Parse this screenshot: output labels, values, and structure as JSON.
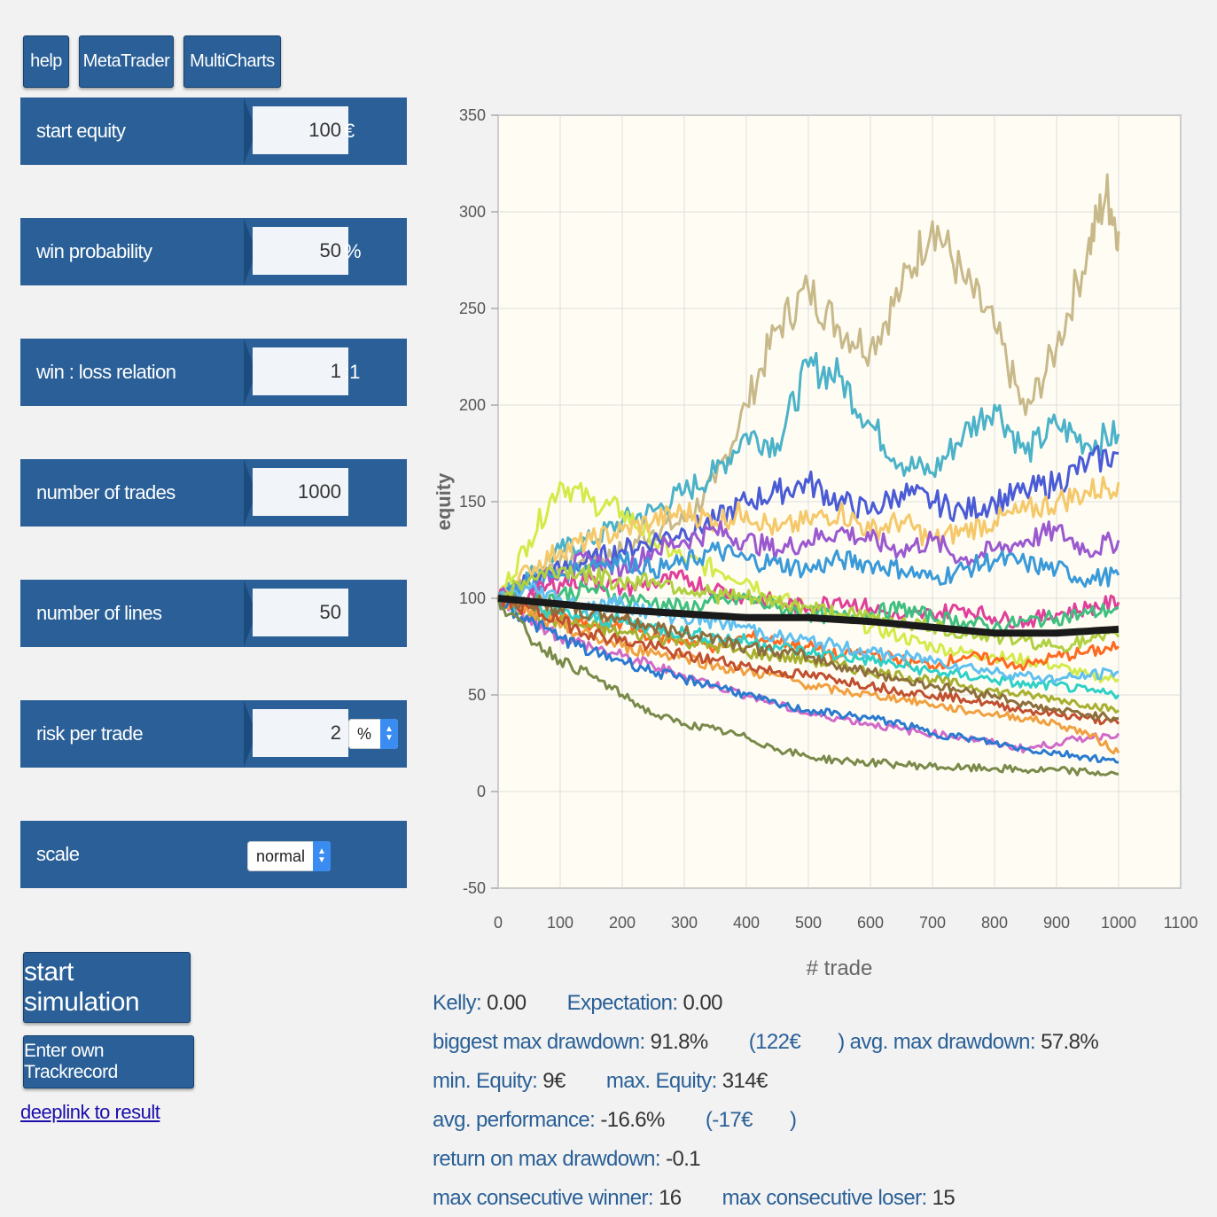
{
  "toolbar": {
    "help": "help",
    "metatrader": "MetaTrader",
    "multicharts": "MultiCharts"
  },
  "params": {
    "start_equity": {
      "label": "start equity",
      "value": "100",
      "unit": "€"
    },
    "win_probability": {
      "label": "win probability",
      "value": "50",
      "unit": "%"
    },
    "win_loss": {
      "label": "win : loss relation",
      "value": "1",
      "unit": ":1"
    },
    "num_trades": {
      "label": "number of trades",
      "value": "1000"
    },
    "num_lines": {
      "label": "number of lines",
      "value": "50"
    },
    "risk": {
      "label": "risk per trade",
      "value": "2",
      "unit_select": "%"
    },
    "scale": {
      "label": "scale",
      "value": "normal"
    }
  },
  "actions": {
    "start": "start simulation",
    "trackrecord": "Enter own Trackrecord",
    "deeplink": "deeplink to result"
  },
  "colors": {
    "accent": "#2a6097",
    "plot_bg": "#fffdf3",
    "average_line": "#1a1a1a"
  },
  "stats": {
    "kelly_label": "Kelly:",
    "kelly": "0.00",
    "expectation_label": "Expectation:",
    "expectation": "0.00",
    "biggest_dd_label": "biggest max drawdown:",
    "biggest_dd": "91.8%",
    "biggest_dd_abs": "(122€",
    "avg_dd_label": ") avg. max drawdown:",
    "avg_dd": "57.8%",
    "min_eq_label": "min. Equity:",
    "min_eq": "9€",
    "max_eq_label": "max. Equity:",
    "max_eq": "314€",
    "avg_perf_label": "avg. performance:",
    "avg_perf": "-16.6%",
    "avg_perf_abs": "(-17€",
    "avg_perf_close": ")",
    "rodd_label": "return on max drawdown:",
    "rodd": "-0.1",
    "max_win_label": "max consecutive winner:",
    "max_win": "16",
    "max_loss_label": "max consecutive loser:",
    "max_loss": "15"
  },
  "chart_data": {
    "type": "line",
    "xlabel": "# trade",
    "ylabel": "equity",
    "xlim": [
      0,
      1100
    ],
    "ylim": [
      -50,
      350
    ],
    "x_ticks": [
      0,
      100,
      200,
      300,
      400,
      500,
      600,
      700,
      800,
      900,
      1000,
      1100
    ],
    "y_ticks": [
      -50,
      0,
      50,
      100,
      150,
      200,
      250,
      300,
      350
    ],
    "grid": true,
    "series": [
      {
        "color": "#c8b98a",
        "x": [
          0,
          50,
          100,
          150,
          200,
          250,
          300,
          350,
          400,
          450,
          500,
          550,
          600,
          650,
          700,
          750,
          800,
          850,
          900,
          950,
          980,
          1000
        ],
        "y": [
          100,
          110,
          120,
          118,
          125,
          135,
          140,
          160,
          200,
          240,
          260,
          240,
          230,
          260,
          295,
          265,
          240,
          195,
          230,
          280,
          310,
          290
        ]
      },
      {
        "color": "#4bb2c9",
        "x": [
          0,
          50,
          100,
          150,
          200,
          250,
          300,
          350,
          400,
          450,
          500,
          550,
          600,
          650,
          700,
          750,
          800,
          850,
          900,
          950,
          1000
        ],
        "y": [
          100,
          112,
          125,
          130,
          140,
          145,
          155,
          165,
          185,
          180,
          220,
          215,
          190,
          170,
          165,
          185,
          200,
          175,
          190,
          180,
          185
        ]
      },
      {
        "color": "#d4ea4a",
        "x": [
          0,
          50,
          100,
          150,
          200,
          250,
          300,
          350,
          400,
          450,
          500,
          550,
          600,
          650,
          700,
          750,
          800,
          850,
          900,
          950,
          1000
        ],
        "y": [
          100,
          130,
          160,
          150,
          145,
          130,
          120,
          115,
          110,
          100,
          95,
          90,
          85,
          80,
          75,
          72,
          70,
          68,
          65,
          60,
          58
        ]
      },
      {
        "color": "#4a5bd6",
        "x": [
          0,
          50,
          100,
          150,
          200,
          250,
          300,
          350,
          400,
          450,
          500,
          550,
          600,
          650,
          700,
          750,
          800,
          850,
          900,
          950,
          1000
        ],
        "y": [
          100,
          110,
          115,
          120,
          125,
          130,
          135,
          140,
          150,
          155,
          160,
          150,
          145,
          155,
          150,
          145,
          150,
          155,
          160,
          170,
          175
        ]
      },
      {
        "color": "#f5c86a",
        "x": [
          0,
          50,
          100,
          150,
          200,
          250,
          300,
          350,
          400,
          450,
          500,
          550,
          600,
          650,
          700,
          750,
          800,
          850,
          900,
          950,
          1000
        ],
        "y": [
          100,
          115,
          125,
          130,
          135,
          140,
          145,
          140,
          145,
          135,
          140,
          145,
          135,
          140,
          130,
          135,
          140,
          145,
          150,
          155,
          160
        ]
      },
      {
        "color": "#9b59d0",
        "x": [
          0,
          50,
          100,
          150,
          200,
          250,
          300,
          350,
          400,
          450,
          500,
          550,
          600,
          650,
          700,
          750,
          800,
          850,
          900,
          950,
          1000
        ],
        "y": [
          100,
          105,
          115,
          120,
          115,
          125,
          130,
          135,
          130,
          125,
          130,
          135,
          130,
          125,
          130,
          120,
          125,
          130,
          135,
          125,
          130
        ]
      },
      {
        "color": "#3a9ad9",
        "x": [
          0,
          50,
          100,
          150,
          200,
          250,
          300,
          350,
          400,
          450,
          500,
          550,
          600,
          650,
          700,
          750,
          800,
          850,
          900,
          950,
          1000
        ],
        "y": [
          100,
          108,
          112,
          118,
          120,
          115,
          118,
          125,
          120,
          118,
          115,
          120,
          118,
          115,
          110,
          115,
          120,
          118,
          115,
          110,
          112
        ]
      },
      {
        "color": "#e0409a",
        "x": [
          0,
          50,
          100,
          150,
          200,
          250,
          300,
          350,
          400,
          450,
          500,
          550,
          600,
          650,
          700,
          750,
          800,
          850,
          900,
          950,
          1000
        ],
        "y": [
          100,
          102,
          108,
          110,
          105,
          108,
          110,
          105,
          100,
          98,
          95,
          100,
          95,
          90,
          92,
          95,
          90,
          88,
          92,
          95,
          98
        ]
      },
      {
        "color": "#40c080",
        "x": [
          0,
          50,
          100,
          150,
          200,
          250,
          300,
          350,
          400,
          450,
          500,
          550,
          600,
          650,
          700,
          750,
          800,
          850,
          900,
          950,
          1000
        ],
        "y": [
          100,
          98,
          102,
          105,
          100,
          98,
          95,
          98,
          100,
          95,
          92,
          90,
          92,
          95,
          90,
          88,
          85,
          88,
          90,
          92,
          95
        ]
      },
      {
        "color": "#ff6a20",
        "x": [
          0,
          50,
          100,
          150,
          200,
          250,
          300,
          350,
          400,
          450,
          500,
          550,
          600,
          650,
          700,
          750,
          800,
          850,
          900,
          950,
          1000
        ],
        "y": [
          100,
          95,
          90,
          85,
          88,
          80,
          78,
          75,
          80,
          78,
          75,
          70,
          72,
          68,
          65,
          70,
          68,
          65,
          70,
          72,
          75
        ]
      },
      {
        "color": "#a8b030",
        "x": [
          0,
          50,
          100,
          150,
          200,
          250,
          300,
          350,
          400,
          450,
          500,
          550,
          600,
          650,
          700,
          750,
          800,
          850,
          900,
          950,
          1000
        ],
        "y": [
          100,
          92,
          88,
          85,
          82,
          80,
          78,
          75,
          72,
          70,
          68,
          65,
          62,
          60,
          58,
          55,
          52,
          50,
          48,
          45,
          42
        ]
      },
      {
        "color": "#2fd0c8",
        "x": [
          0,
          50,
          100,
          150,
          200,
          250,
          300,
          350,
          400,
          450,
          500,
          550,
          600,
          650,
          700,
          750,
          800,
          850,
          900,
          950,
          1000
        ],
        "y": [
          100,
          95,
          92,
          90,
          88,
          85,
          82,
          80,
          78,
          75,
          72,
          70,
          68,
          65,
          62,
          60,
          58,
          55,
          55,
          52,
          50
        ]
      },
      {
        "color": "#d06ac8",
        "x": [
          0,
          50,
          100,
          150,
          200,
          250,
          300,
          350,
          400,
          450,
          500,
          550,
          600,
          650,
          700,
          750,
          800,
          850,
          900,
          950,
          1000
        ],
        "y": [
          100,
          90,
          80,
          75,
          70,
          65,
          60,
          55,
          50,
          45,
          40,
          38,
          35,
          32,
          30,
          28,
          25,
          22,
          25,
          28,
          30
        ]
      },
      {
        "color": "#f0a040",
        "x": [
          0,
          50,
          100,
          150,
          200,
          250,
          300,
          350,
          400,
          450,
          500,
          550,
          600,
          650,
          700,
          750,
          800,
          850,
          900,
          950,
          1000
        ],
        "y": [
          100,
          92,
          85,
          80,
          75,
          72,
          70,
          65,
          62,
          60,
          55,
          52,
          50,
          48,
          45,
          42,
          40,
          38,
          35,
          30,
          20
        ]
      },
      {
        "color": "#2a7ad0",
        "x": [
          0,
          50,
          100,
          150,
          200,
          250,
          300,
          350,
          400,
          450,
          500,
          550,
          600,
          650,
          700,
          750,
          800,
          850,
          900,
          950,
          1000
        ],
        "y": [
          100,
          88,
          80,
          72,
          68,
          62,
          58,
          55,
          50,
          45,
          42,
          40,
          38,
          35,
          30,
          28,
          25,
          22,
          20,
          18,
          15
        ]
      },
      {
        "color": "#7a8a4a",
        "x": [
          0,
          50,
          100,
          150,
          200,
          250,
          300,
          350,
          400,
          450,
          500,
          550,
          600,
          650,
          700,
          750,
          800,
          850,
          900,
          950,
          1000
        ],
        "y": [
          100,
          80,
          68,
          60,
          50,
          40,
          35,
          32,
          28,
          22,
          18,
          16,
          15,
          14,
          13,
          12,
          12,
          11,
          11,
          10,
          9
        ]
      },
      {
        "color": "#c05030",
        "x": [
          0,
          50,
          100,
          150,
          200,
          250,
          300,
          350,
          400,
          450,
          500,
          550,
          600,
          650,
          700,
          750,
          800,
          850,
          900,
          950,
          1000
        ],
        "y": [
          100,
          95,
          88,
          82,
          78,
          75,
          70,
          68,
          65,
          62,
          60,
          58,
          55,
          52,
          50,
          48,
          45,
          42,
          40,
          38,
          35
        ]
      },
      {
        "color": "#60c0f0",
        "x": [
          0,
          50,
          100,
          150,
          200,
          250,
          300,
          350,
          400,
          450,
          500,
          550,
          600,
          650,
          700,
          750,
          800,
          850,
          900,
          950,
          1000
        ],
        "y": [
          100,
          105,
          100,
          95,
          98,
          92,
          90,
          88,
          85,
          80,
          78,
          75,
          72,
          70,
          68,
          65,
          62,
          60,
          58,
          60,
          62
        ]
      },
      {
        "color": "#8d6e3c",
        "x": [
          0,
          50,
          100,
          150,
          200,
          250,
          300,
          350,
          400,
          450,
          500,
          550,
          600,
          650,
          700,
          750,
          800,
          850,
          900,
          950,
          1000
        ],
        "y": [
          100,
          98,
          95,
          92,
          90,
          85,
          82,
          80,
          75,
          72,
          70,
          65,
          62,
          58,
          55,
          52,
          50,
          45,
          42,
          40,
          38
        ]
      },
      {
        "color": "#b0d040",
        "x": [
          0,
          50,
          100,
          150,
          200,
          250,
          300,
          350,
          400,
          450,
          500,
          550,
          600,
          650,
          700,
          750,
          800,
          850,
          900,
          950,
          1000
        ],
        "y": [
          100,
          110,
          115,
          112,
          108,
          110,
          105,
          102,
          100,
          98,
          95,
          92,
          90,
          88,
          85,
          82,
          80,
          78,
          75,
          78,
          80
        ]
      },
      {
        "color": "#1a1a1a",
        "x": [
          0,
          100,
          200,
          300,
          400,
          500,
          600,
          700,
          800,
          900,
          1000
        ],
        "y": [
          100,
          97,
          94,
          92,
          90,
          90,
          88,
          85,
          82,
          82,
          84
        ]
      }
    ]
  }
}
